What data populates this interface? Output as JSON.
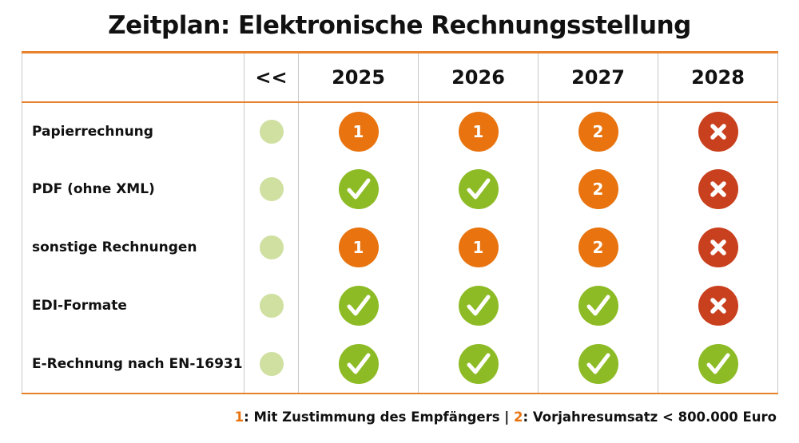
{
  "title": "Zeitplan: Elektronische Rechnungsstellung",
  "columns": [
    "",
    "<<",
    "2025",
    "2026",
    "2027",
    "2028"
  ],
  "rows": [
    {
      "label": "Papierrechnung",
      "cells": [
        "past",
        "1",
        "1",
        "2",
        "no"
      ]
    },
    {
      "label": "PDF (ohne XML)",
      "cells": [
        "past",
        "yes",
        "yes",
        "2",
        "no"
      ]
    },
    {
      "label": "sonstige Rechnungen",
      "cells": [
        "past",
        "1",
        "1",
        "2",
        "no"
      ]
    },
    {
      "label": "EDI-Formate",
      "cells": [
        "past",
        "yes",
        "yes",
        "yes",
        "no"
      ]
    },
    {
      "label": "E-Rechnung nach EN-16931",
      "cells": [
        "past",
        "yes",
        "yes",
        "yes",
        "yes"
      ]
    }
  ],
  "legend": {
    "num1": "1",
    "text1": ": Mit Zustimmung des Empfängers | ",
    "num2": "2",
    "text2": ": Vorjahresumsatz < 800.000 Euro"
  },
  "colors": {
    "accent": "#e8812c",
    "orange": "#e8730f",
    "green": "#8dbb25",
    "red": "#c9401e",
    "past": "#cfe0a0"
  },
  "icons": {
    "yes": "check-icon",
    "no": "cross-icon",
    "past": "dot-icon"
  }
}
